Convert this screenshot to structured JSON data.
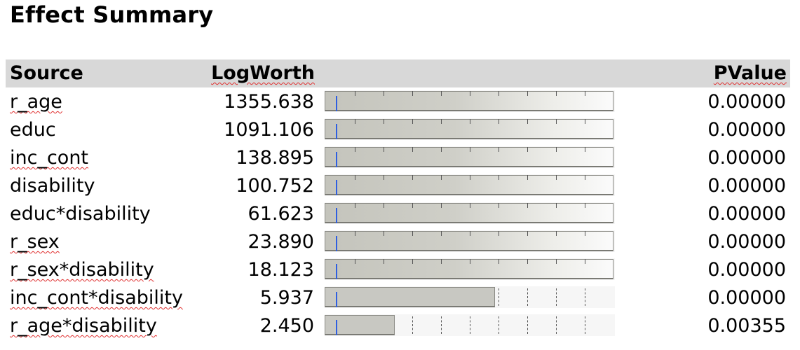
{
  "title": "Effect Summary",
  "columns": {
    "source": "Source",
    "logworth": "LogWorth",
    "pvalue": "PValue"
  },
  "colors": {
    "header_bg": "#d8d8d8",
    "bar_fill": "#c8c8c2",
    "reference_line": "#2f5fe0",
    "spell_squiggle": "#e03030"
  },
  "scale_max_logworth": 10,
  "rows": [
    {
      "source": "r_age",
      "logworth": "1355.638",
      "pvalue": "0.00000",
      "logworth_value": 1355.638
    },
    {
      "source": "educ",
      "logworth": "1091.106",
      "pvalue": "0.00000",
      "logworth_value": 1091.106
    },
    {
      "source": "inc_cont",
      "logworth": "138.895",
      "pvalue": "0.00000",
      "logworth_value": 138.895
    },
    {
      "source": "disability",
      "logworth": "100.752",
      "pvalue": "0.00000",
      "logworth_value": 100.752
    },
    {
      "source": "educ*disability",
      "logworth": "61.623",
      "pvalue": "0.00000",
      "logworth_value": 61.623
    },
    {
      "source": "r_sex",
      "logworth": "23.890",
      "pvalue": "0.00000",
      "logworth_value": 23.89
    },
    {
      "source": "r_sex*disability",
      "logworth": "18.123",
      "pvalue": "0.00000",
      "logworth_value": 18.123
    },
    {
      "source": "inc_cont*disability",
      "logworth": "5.937",
      "pvalue": "0.00000",
      "logworth_value": 5.937
    },
    {
      "source": "r_age*disability",
      "logworth": "2.450",
      "pvalue": "0.00355",
      "logworth_value": 2.45
    }
  ]
}
